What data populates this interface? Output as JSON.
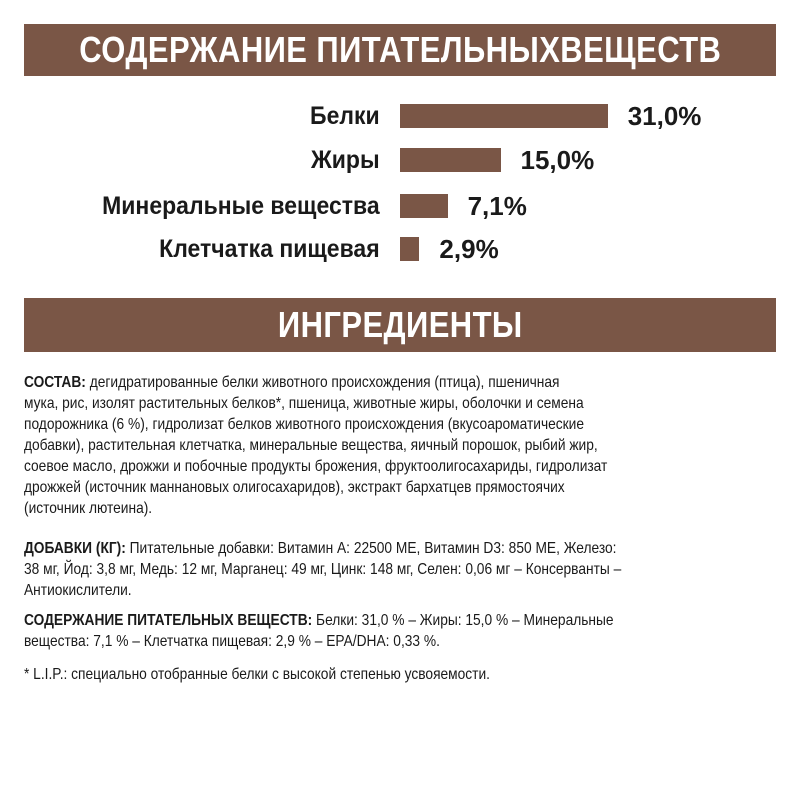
{
  "header_nutrients": "СОДЕРЖАНИЕ ПИТАТЕЛЬНЫХВЕЩЕСТВ",
  "header_ingredients": "ИНГРЕДИЕНТЫ",
  "colors": {
    "brand": "#7a5646"
  },
  "chart_data": {
    "type": "bar",
    "orientation": "horizontal",
    "title": "СОДЕРЖАНИЕ ПИТАТЕЛЬНЫХВЕЩЕСТВ",
    "categories": [
      "Белки",
      "Жиры",
      "Минеральные вещества",
      "Клетчатка пищевая"
    ],
    "values": [
      31.0,
      15.0,
      7.1,
      2.9
    ],
    "value_labels": [
      "31,0%",
      "15,0%",
      "7,1%",
      "2,9%"
    ],
    "unit": "%",
    "grid": false
  },
  "ingredients": {
    "composition_label": "СОСТАВ:",
    "composition_lines": [
      " дегидратированные белки животного происхождения (птица), пшеничная",
      "мука, рис, изолят растительных белков*, пшеница, животные жиры, оболочки и семена",
      "подорожника (6 %), гидролизат белков животного происхождения (вкусоароматические",
      "добавки), растительная клетчатка, минеральные вещества, яичный порошок, рыбий жир,",
      "соевое масло, дрожжи и побочные продукты брожения, фруктоолигосахариды, гидролизат",
      "дрожжей (источник маннановых олигосахаридов), экстракт бархатцев прямостоячих",
      "(источник лютеина)."
    ],
    "additives_label": "ДОБАВКИ (КГ):",
    "additives_lines": [
      " Питательные добавки: Витамин A: 22500 МЕ, Витамин D3: 850 МЕ, Железо:",
      "38 мг, Йод: 3,8 мг, Медь: 12 мг, Марганец: 49 мг, Цинк: 148 мг, Селен: 0,06 мг – Консерванты –",
      "Антиокислители."
    ],
    "nutrients_label": "СОДЕРЖАНИЕ ПИТАТЕЛЬНЫХ ВЕЩЕСТВ:",
    "nutrients_lines": [
      " Белки: 31,0 % – Жиры: 15,0 % – Минеральные",
      "вещества: 7,1 % – Клетчатка пищевая: 2,9 % – EPA/DHA: 0,33 %."
    ],
    "footnote": "* L.I.P.: специально отобранные белки с высокой степенью усвояемости."
  }
}
